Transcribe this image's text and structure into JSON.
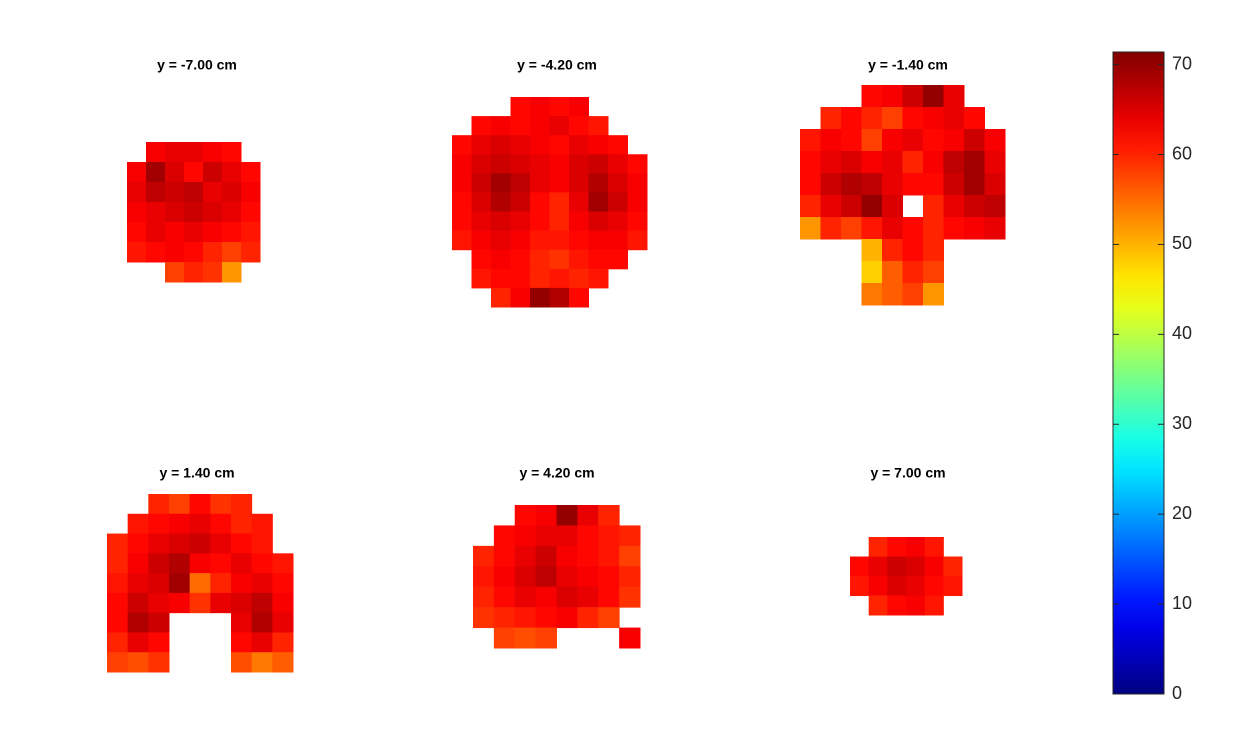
{
  "chart_data": {
    "type": "heatmap",
    "colormap": "jet",
    "clim": [
      0,
      71.4
    ],
    "cticks": [
      0,
      10,
      20,
      30,
      40,
      50,
      60,
      70
    ],
    "panels": [
      {
        "title": "y = -7.00 cm",
        "grid": [
          [
            null,
            63,
            64,
            64,
            63,
            62,
            null
          ],
          [
            63,
            69,
            65,
            62,
            66,
            64,
            62
          ],
          [
            64,
            67,
            66,
            67,
            64,
            65,
            63
          ],
          [
            63,
            64,
            65,
            66,
            65,
            64,
            62
          ],
          [
            62,
            64,
            63,
            64,
            63,
            62,
            61
          ],
          [
            61,
            62,
            63,
            62,
            60,
            58,
            60
          ],
          [
            null,
            null,
            58,
            60,
            59,
            52,
            null
          ]
        ]
      },
      {
        "title": "y = -4.20 cm",
        "grid": [
          [
            null,
            null,
            null,
            62,
            63,
            62,
            63,
            null,
            null,
            null
          ],
          [
            null,
            62,
            63,
            62,
            63,
            64,
            62,
            61,
            null,
            null
          ],
          [
            62,
            64,
            65,
            64,
            63,
            62,
            64,
            63,
            62,
            null
          ],
          [
            63,
            65,
            66,
            65,
            64,
            63,
            65,
            66,
            64,
            62
          ],
          [
            63,
            66,
            69,
            67,
            64,
            63,
            65,
            68,
            65,
            63
          ],
          [
            62,
            65,
            68,
            66,
            62,
            60,
            64,
            69,
            66,
            63
          ],
          [
            62,
            64,
            65,
            64,
            62,
            60,
            63,
            65,
            64,
            62
          ],
          [
            61,
            63,
            64,
            63,
            61,
            61,
            62,
            63,
            63,
            61
          ],
          [
            null,
            62,
            63,
            62,
            60,
            59,
            61,
            62,
            62,
            null
          ],
          [
            null,
            61,
            62,
            62,
            60,
            61,
            60,
            61,
            null,
            null
          ],
          [
            null,
            null,
            60,
            63,
            70,
            68,
            62,
            null,
            null,
            null
          ]
        ]
      },
      {
        "title": "y = -1.40 cm",
        "grid": [
          [
            null,
            null,
            null,
            62,
            63,
            66,
            70,
            64,
            null,
            null
          ],
          [
            null,
            60,
            62,
            60,
            58,
            62,
            63,
            64,
            62,
            null
          ],
          [
            61,
            63,
            62,
            58,
            63,
            64,
            62,
            63,
            66,
            63
          ],
          [
            62,
            64,
            65,
            63,
            64,
            60,
            63,
            67,
            69,
            64
          ],
          [
            62,
            66,
            68,
            67,
            64,
            62,
            62,
            66,
            69,
            65
          ],
          [
            60,
            64,
            66,
            70,
            65,
            null,
            60,
            64,
            66,
            67
          ],
          [
            52,
            60,
            58,
            61,
            64,
            62,
            60,
            62,
            63,
            64
          ],
          [
            null,
            null,
            null,
            50,
            60,
            62,
            60,
            null,
            null,
            null
          ],
          [
            null,
            null,
            null,
            48,
            56,
            60,
            58,
            null,
            null,
            null
          ],
          [
            null,
            null,
            null,
            54,
            56,
            58,
            52,
            null,
            null,
            null
          ]
        ]
      },
      {
        "title": "y = 1.40 cm",
        "grid": [
          [
            null,
            null,
            60,
            58,
            62,
            59,
            60,
            null,
            null
          ],
          [
            null,
            61,
            62,
            63,
            64,
            62,
            60,
            61,
            null
          ],
          [
            60,
            62,
            64,
            65,
            66,
            64,
            62,
            61,
            null
          ],
          [
            60,
            63,
            66,
            68,
            63,
            62,
            64,
            62,
            61
          ],
          [
            61,
            64,
            65,
            69,
            55,
            60,
            63,
            64,
            62
          ],
          [
            62,
            66,
            64,
            63,
            59,
            64,
            65,
            67,
            63
          ],
          [
            62,
            68,
            66,
            null,
            null,
            null,
            64,
            68,
            64
          ],
          [
            60,
            64,
            62,
            null,
            null,
            null,
            62,
            64,
            60
          ],
          [
            58,
            57,
            59,
            null,
            null,
            null,
            57,
            54,
            56
          ]
        ]
      },
      {
        "title": "y = 4.20 cm",
        "grid": [
          [
            null,
            null,
            62,
            63,
            70,
            64,
            60,
            null
          ],
          [
            null,
            62,
            63,
            64,
            64,
            62,
            61,
            60
          ],
          [
            60,
            62,
            64,
            66,
            63,
            62,
            61,
            58
          ],
          [
            61,
            63,
            65,
            67,
            64,
            63,
            62,
            60
          ],
          [
            60,
            62,
            64,
            63,
            65,
            64,
            62,
            59
          ],
          [
            59,
            60,
            61,
            62,
            63,
            60,
            58,
            null
          ],
          [
            null,
            58,
            57,
            58,
            null,
            null,
            null,
            63
          ]
        ]
      },
      {
        "title": "y = 7.00 cm",
        "grid": [
          [
            null,
            60,
            62,
            63,
            61,
            null
          ],
          [
            62,
            64,
            66,
            65,
            63,
            60
          ],
          [
            61,
            63,
            65,
            64,
            62,
            61
          ],
          [
            null,
            60,
            62,
            63,
            61,
            null
          ]
        ]
      }
    ]
  }
}
